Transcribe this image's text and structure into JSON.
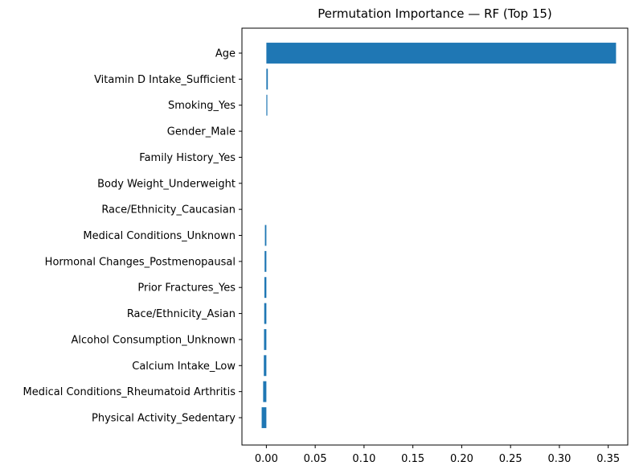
{
  "chart_data": {
    "type": "bar",
    "orientation": "horizontal",
    "title": "Permutation Importance — RF (Top 15)",
    "xlabel": "",
    "ylabel": "",
    "categories": [
      "Age",
      "Vitamin D Intake_Sufficient",
      "Smoking_Yes",
      "Gender_Male",
      "Family History_Yes",
      "Body Weight_Underweight",
      "Race/Ethnicity_Caucasian",
      "Medical Conditions_Unknown",
      "Hormonal Changes_Postmenopausal",
      "Prior Fractures_Yes",
      "Race/Ethnicity_Asian",
      "Alcohol Consumption_Unknown",
      "Calcium Intake_Low",
      "Medical Conditions_Rheumatoid Arthritis",
      "Physical Activity_Sedentary"
    ],
    "values": [
      0.358,
      0.0015,
      0.0005,
      0,
      0,
      0,
      0,
      -0.0015,
      -0.0018,
      -0.002,
      -0.0022,
      -0.0024,
      -0.0026,
      -0.0033,
      -0.0048
    ],
    "xlim": [
      -0.025,
      0.37
    ],
    "xticks": [
      "0.00",
      "0.05",
      "0.10",
      "0.15",
      "0.20",
      "0.25",
      "0.30",
      "0.35"
    ],
    "xtick_values": [
      0,
      0.05,
      0.1,
      0.15,
      0.2,
      0.25,
      0.3,
      0.35
    ],
    "bar_color": "#1f77b4",
    "grid": false,
    "legend": "none"
  }
}
